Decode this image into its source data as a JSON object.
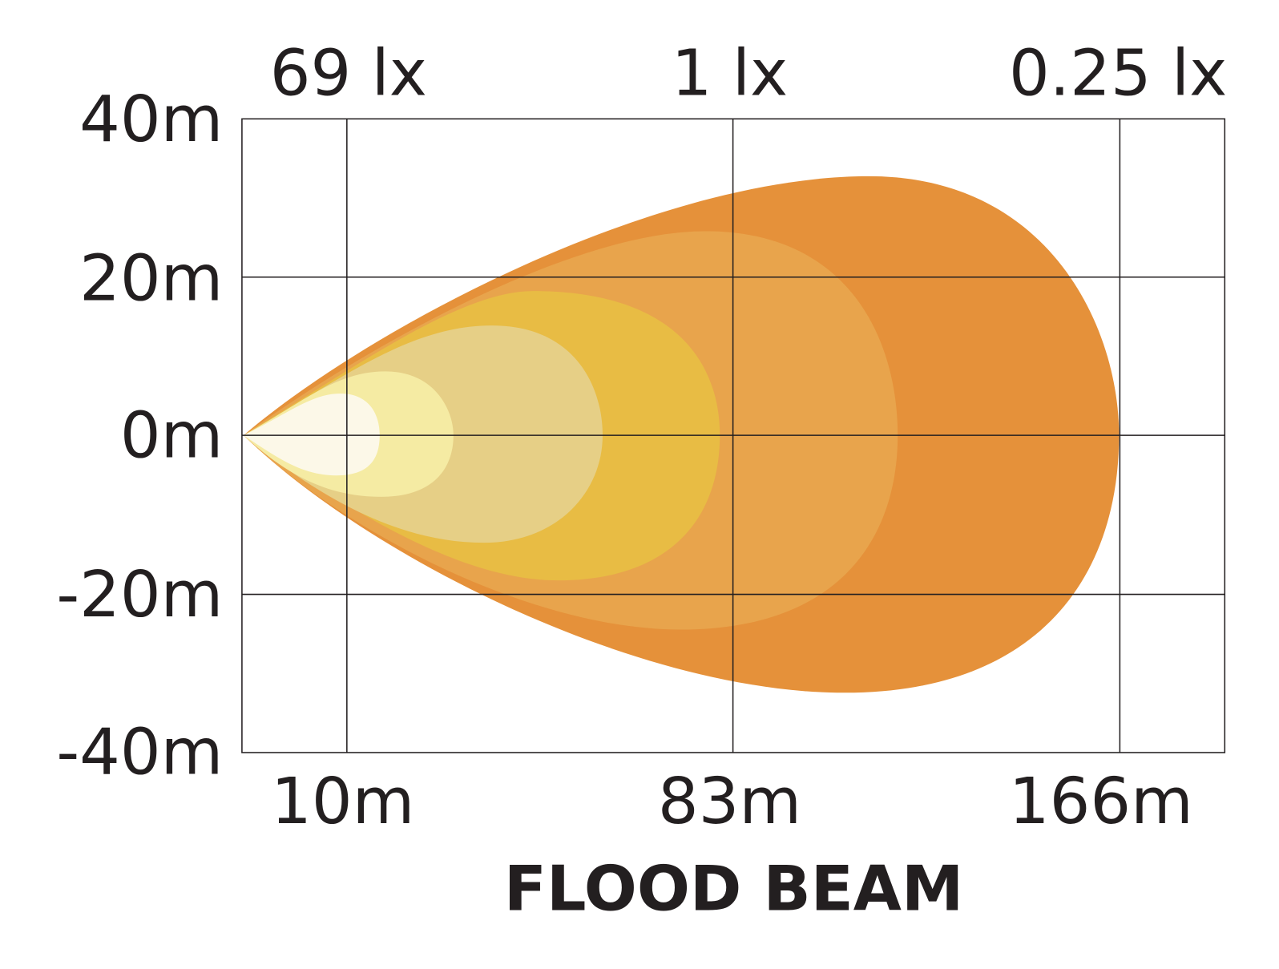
{
  "title": "FLOOD BEAM",
  "lux_labels": [
    "69 lx",
    "1 lx",
    "0.25 lx"
  ],
  "y_axis": {
    "labels": [
      "40m",
      "20m",
      "0m",
      "-20m",
      "-40m"
    ]
  },
  "x_axis": {
    "labels": [
      "10m",
      "83m",
      "166m"
    ]
  }
}
